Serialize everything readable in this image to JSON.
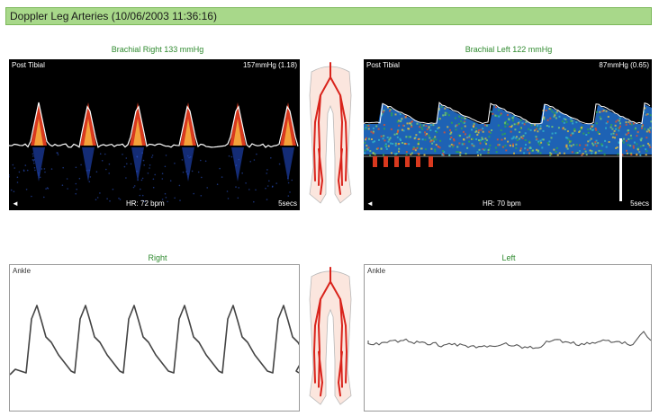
{
  "window": {
    "title": "Doppler Leg Arteries (10/06/2003 11:36:16)"
  },
  "doppler_right": {
    "caption": "Brachial Right 133 mmHg",
    "site": "Post Tibial",
    "pressure": "157mmHg (1.18)",
    "hr": "HR: 72 bpm",
    "duration": "5secs",
    "marker": "◄"
  },
  "doppler_left": {
    "caption": "Brachial Left 122 mmHg",
    "site": "Post Tibial",
    "pressure": "87mmHg (0.65)",
    "hr": "HR: 70 bpm",
    "duration": "5secs",
    "marker": "◄"
  },
  "pvr_right": {
    "caption": "Right",
    "site": "Ankle"
  },
  "pvr_left": {
    "caption": "Left",
    "site": "Ankle"
  },
  "colors": {
    "titlebar": "#a8d88a",
    "caption": "#2f8a2f",
    "artery": "#d9231b",
    "leg_fill": "#fbe6de"
  },
  "icons": [
    "legs-artery-diagram-icon",
    "legs-artery-diagram-icon"
  ]
}
